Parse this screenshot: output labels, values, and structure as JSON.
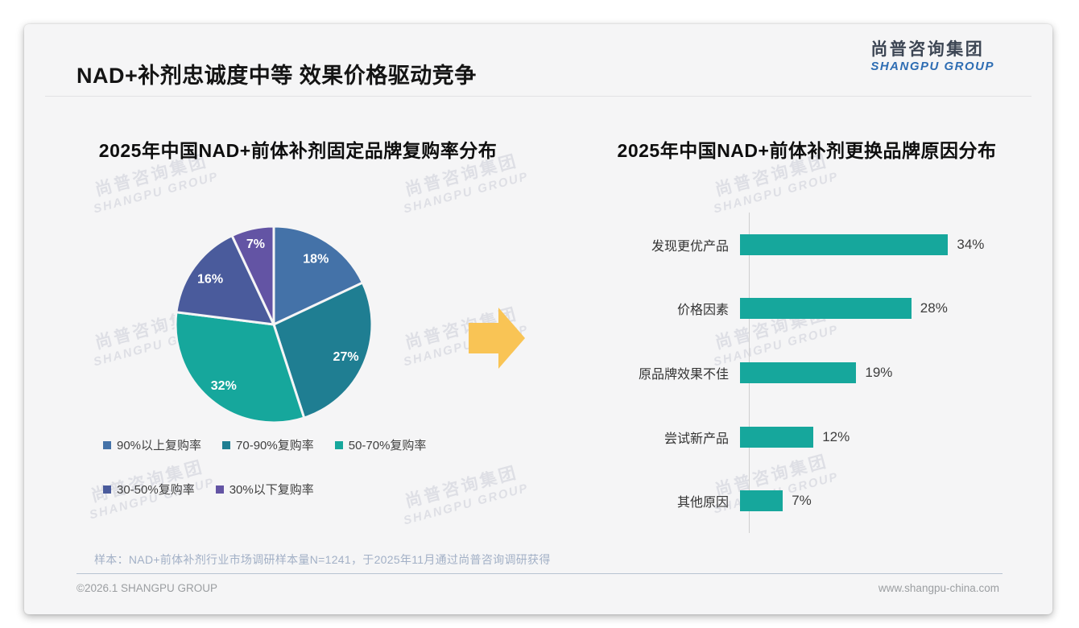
{
  "header": {
    "title": "NAD+补剂忠诚度中等 效果价格驱动竞争",
    "logo_cn": "尚普咨询集团",
    "logo_en": "SHANGPU GROUP"
  },
  "watermark": {
    "line1": "尚普咨询集团",
    "line2": "SHANGPU GROUP"
  },
  "arrow_color": "#f9c455",
  "chart_data": [
    {
      "type": "pie",
      "title": "2025年中国NAD+前体补剂固定品牌复购率分布",
      "labels": [
        "90%以上复购率",
        "70-90%复购率",
        "50-70%复购率",
        "30-50%复购率",
        "30%以下复购率"
      ],
      "values": [
        18,
        27,
        32,
        16,
        7
      ],
      "value_suffix": "%",
      "colors": [
        "#4472a8",
        "#1f7e92",
        "#16a79c",
        "#4a5b9c",
        "#6354a4"
      ],
      "start_angle_deg": 0,
      "direction": "clockwise",
      "legend_rows": [
        [
          0,
          1,
          2
        ],
        [
          3,
          4
        ]
      ],
      "legend_position": "bottom"
    },
    {
      "type": "bar",
      "title": "2025年中国NAD+前体补剂更换品牌原因分布",
      "orientation": "horizontal",
      "categories": [
        "发现更优产品",
        "价格因素",
        "原品牌效果不佳",
        "尝试新产品",
        "其他原因"
      ],
      "values": [
        34,
        28,
        19,
        12,
        7
      ],
      "value_suffix": "%",
      "bar_color": "#16a79c",
      "axis": "left-vertical-baseline",
      "grid": false
    }
  ],
  "footnote": "样本：NAD+前体补剂行业市场调研样本量N=1241，于2025年11月通过尚普咨询调研获得",
  "footer": {
    "left": "©2026.1 SHANGPU GROUP",
    "right": "www.shangpu-china.com"
  }
}
